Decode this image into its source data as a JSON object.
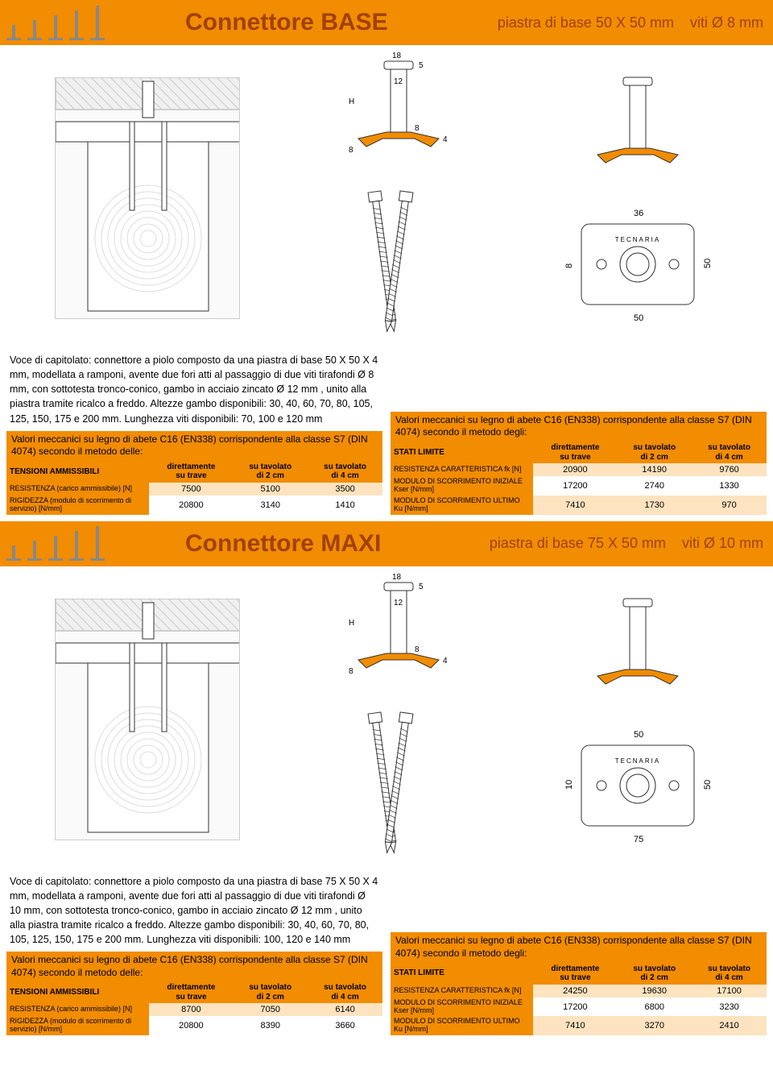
{
  "colors": {
    "orange": "#f28c00",
    "dark_orange": "#a0410d",
    "row_tint": "#fde3bf"
  },
  "sections": [
    {
      "title": "Connettore BASE",
      "sub1": "piastra di base 50 X 50 mm",
      "sub2": "viti Ø 8 mm",
      "icon_heights": [
        16,
        22,
        28,
        34,
        40
      ],
      "dims": {
        "top_width": "18",
        "top_h": "5",
        "stem_d": "12",
        "shoulder": "8",
        "base_t": "4",
        "height_label": "H",
        "base_h": "8",
        "plate_w": "36",
        "plate_w2": "50",
        "plate_h": "50",
        "plate_hole_offset": "8",
        "brand": "TECNARIA"
      },
      "caption": "Voce di capitolato: connettore a piolo composto da una piastra di base 50 X 50 X 4 mm, modellata a ramponi, avente due fori atti al passaggio di due viti tirafondi Ø 8 mm, con sottotesta tronco-conico, gambo in acciaio zincato Ø 12 mm , unito alla piastra tramite ricalco a freddo. Altezze gambo disponibili: 30, 40, 60, 70, 80, 105, 125, 150, 175 e 200 mm. Lunghezza viti disponibili: 70, 100 e 120 mm",
      "left_table": {
        "heading": "Valori meccanici su legno di abete C16 (EN338) corrispondente alla classe S7 (DIN 4074) secondo il metodo delle:",
        "col0": "TENSIONI AMMISSIBILI",
        "cols": [
          "direttamente su trave",
          "su tavolato di 2 cm",
          "su tavolato di 4 cm"
        ],
        "rows": [
          {
            "label": "RESISTENZA (carico ammissibile) [N]",
            "vals": [
              "7500",
              "5100",
              "3500"
            ]
          },
          {
            "label": "RIGIDEZZA (modulo di scorrimento di servizio) [N/mm]",
            "vals": [
              "20800",
              "3140",
              "1410"
            ]
          }
        ]
      },
      "right_table": {
        "heading": "Valori meccanici su legno di abete C16 (EN338) corrispondente alla classe S7 (DIN 4074) secondo il metodo degli:",
        "col0": "STATI LIMITE",
        "cols": [
          "direttamente su trave",
          "su tavolato di 2 cm",
          "su tavolato di 4 cm"
        ],
        "rows": [
          {
            "label": "RESISTENZA CARATTERISTICA fk [N]",
            "vals": [
              "20900",
              "14190",
              "9760"
            ]
          },
          {
            "label": "MODULO DI SCORRIMENTO INIZIALE Kser [N/mm]",
            "vals": [
              "17200",
              "2740",
              "1330"
            ]
          },
          {
            "label": "MODULO DI SCORRIMENTO ULTIMO Ku [N/mm]",
            "vals": [
              "7410",
              "1730",
              "970"
            ]
          }
        ]
      }
    },
    {
      "title": "Connettore MAXI",
      "sub1": "piastra di base 75 X 50 mm",
      "sub2": "viti Ø 10 mm",
      "icon_heights": [
        16,
        22,
        28,
        34,
        40
      ],
      "dims": {
        "top_width": "18",
        "top_h": "5",
        "stem_d": "12",
        "shoulder": "8",
        "base_t": "4",
        "height_label": "H",
        "base_h": "8",
        "plate_w": "50",
        "plate_w2": "75",
        "plate_h": "50",
        "plate_hole_offset": "10",
        "brand": "TECNARIA"
      },
      "caption": "Voce di capitolato: connettore a piolo composto da una piastra di base 75 X 50 X 4 mm, modellata a ramponi, avente due fori atti al passaggio di due viti tirafondi Ø 10 mm, con sottotesta tronco-conico, gambo in acciaio zincato Ø 12 mm , unito alla piastra tramite ricalco a freddo. Altezze gambo disponibili: 30, 40, 60, 70, 80, 105, 125, 150, 175 e 200 mm. Lunghezza viti disponibili: 100, 120 e 140 mm",
      "left_table": {
        "heading": "Valori meccanici su legno di abete C16 (EN338) corrispondente alla classe S7 (DIN 4074) secondo il metodo delle:",
        "col0": "TENSIONI AMMISSIBILI",
        "cols": [
          "direttamente su trave",
          "su tavolato di 2 cm",
          "su tavolato di 4 cm"
        ],
        "rows": [
          {
            "label": "RESISTENZA (carico ammissibile) [N]",
            "vals": [
              "8700",
              "7050",
              "6140"
            ]
          },
          {
            "label": "RIGIDEZZA (modulo di scorrimento di servizio) [N/mm]",
            "vals": [
              "20800",
              "8390",
              "3660"
            ]
          }
        ]
      },
      "right_table": {
        "heading": "Valori meccanici su legno di abete C16 (EN338) corrispondente alla classe S7 (DIN 4074) secondo il metodo degli:",
        "col0": "STATI LIMITE",
        "cols": [
          "direttamente su trave",
          "su tavolato di 2 cm",
          "su tavolato di 4 cm"
        ],
        "rows": [
          {
            "label": "RESISTENZA CARATTERISTICA fk [N]",
            "vals": [
              "24250",
              "19630",
              "17100"
            ]
          },
          {
            "label": "MODULO DI SCORRIMENTO INIZIALE Kser [N/mm]",
            "vals": [
              "17200",
              "6800",
              "3230"
            ]
          },
          {
            "label": "MODULO DI SCORRIMENTO ULTIMO Ku [N/mm]",
            "vals": [
              "7410",
              "3270",
              "2410"
            ]
          }
        ]
      }
    }
  ]
}
